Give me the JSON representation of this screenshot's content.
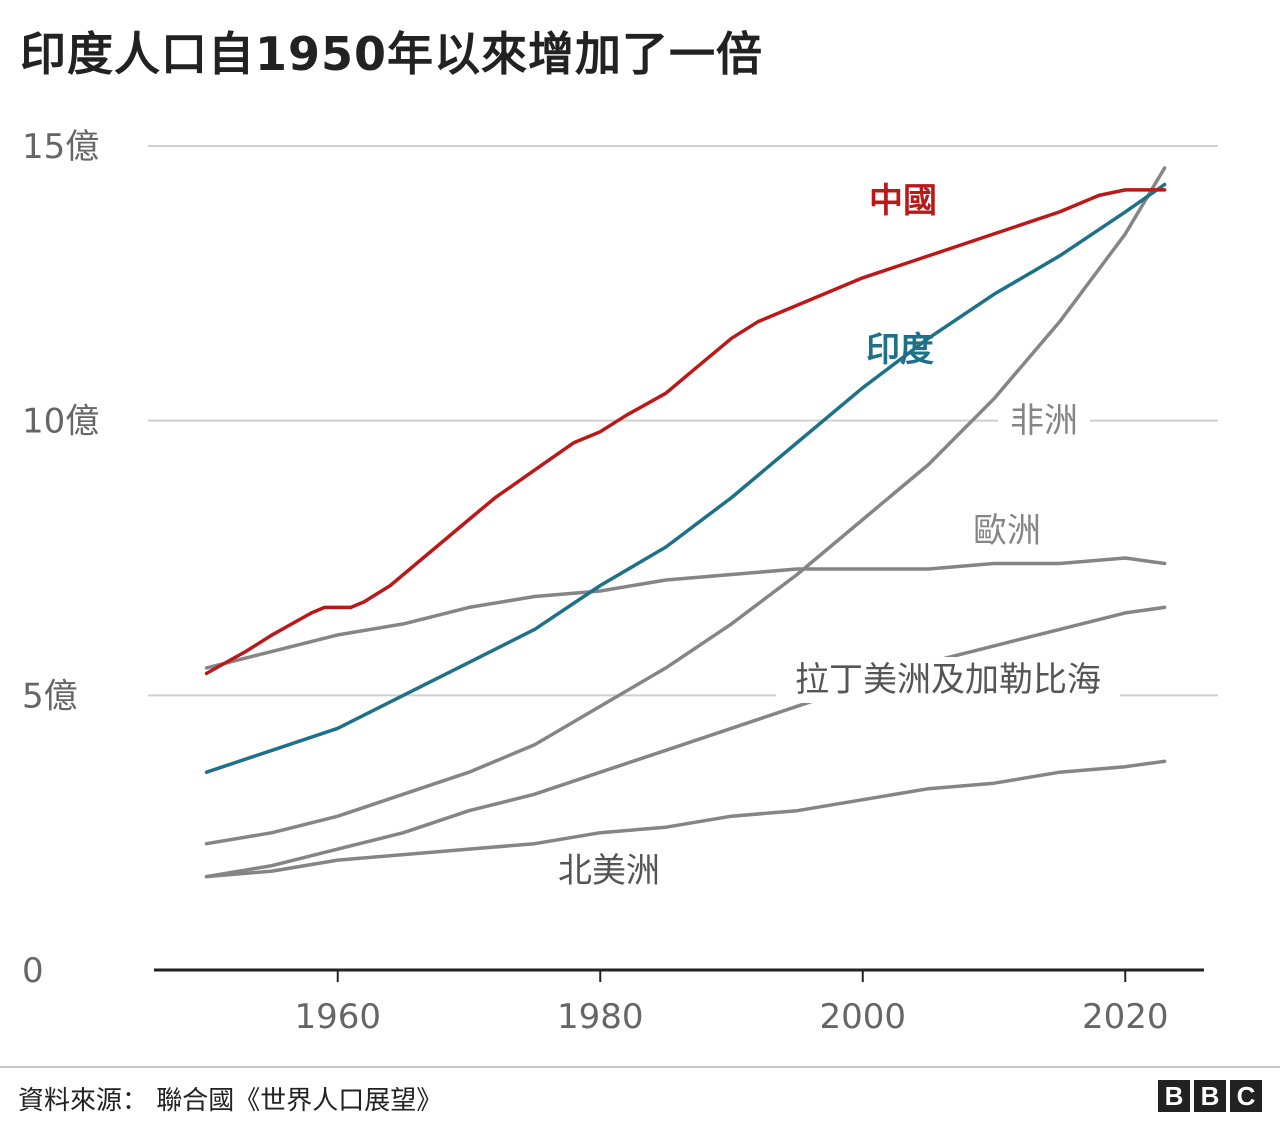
{
  "title": "印度人口自1950年以來增加了一倍",
  "source": "資料來源： 聯合國《世界人口展望》",
  "logo": [
    "B",
    "B",
    "C"
  ],
  "colors": {
    "china": "#bb1919",
    "india": "#1d7189",
    "other": "#858585",
    "grid": "#d0d0d0",
    "axis": "#222222"
  },
  "chart_data": {
    "type": "line",
    "xlim": [
      1946,
      2026
    ],
    "ylim": [
      0,
      15
    ],
    "x_ticks": [
      1960,
      1980,
      2000,
      2020
    ],
    "y_ticks": [
      {
        "value": 0,
        "label": "0"
      },
      {
        "value": 5,
        "label": "5億"
      },
      {
        "value": 10,
        "label": "10億"
      },
      {
        "value": 15,
        "label": "15億"
      }
    ],
    "grid": true,
    "series": [
      {
        "key": "china",
        "name": "中國",
        "label_color": "#bb1919",
        "points": [
          [
            1950,
            5.4
          ],
          [
            1953,
            5.8
          ],
          [
            1955,
            6.1
          ],
          [
            1958,
            6.5
          ],
          [
            1959,
            6.6
          ],
          [
            1960,
            6.6
          ],
          [
            1961,
            6.6
          ],
          [
            1962,
            6.7
          ],
          [
            1964,
            7.0
          ],
          [
            1966,
            7.4
          ],
          [
            1968,
            7.8
          ],
          [
            1970,
            8.2
          ],
          [
            1972,
            8.6
          ],
          [
            1975,
            9.1
          ],
          [
            1978,
            9.6
          ],
          [
            1980,
            9.8
          ],
          [
            1982,
            10.1
          ],
          [
            1985,
            10.5
          ],
          [
            1987,
            10.9
          ],
          [
            1990,
            11.5
          ],
          [
            1992,
            11.8
          ],
          [
            1995,
            12.1
          ],
          [
            2000,
            12.6
          ],
          [
            2005,
            13.0
          ],
          [
            2010,
            13.4
          ],
          [
            2015,
            13.8
          ],
          [
            2018,
            14.1
          ],
          [
            2020,
            14.2
          ],
          [
            2022,
            14.2
          ],
          [
            2023,
            14.2
          ]
        ]
      },
      {
        "key": "india",
        "name": "印度",
        "label_color": "#1d7189",
        "points": [
          [
            1950,
            3.6
          ],
          [
            1955,
            4.0
          ],
          [
            1960,
            4.4
          ],
          [
            1965,
            5.0
          ],
          [
            1970,
            5.6
          ],
          [
            1975,
            6.2
          ],
          [
            1980,
            7.0
          ],
          [
            1985,
            7.7
          ],
          [
            1990,
            8.6
          ],
          [
            1995,
            9.6
          ],
          [
            2000,
            10.6
          ],
          [
            2005,
            11.5
          ],
          [
            2010,
            12.3
          ],
          [
            2015,
            13.0
          ],
          [
            2020,
            13.8
          ],
          [
            2023,
            14.3
          ]
        ]
      },
      {
        "key": "africa",
        "name": "非洲",
        "label_color": "#858585",
        "points": [
          [
            1950,
            2.3
          ],
          [
            1955,
            2.5
          ],
          [
            1960,
            2.8
          ],
          [
            1965,
            3.2
          ],
          [
            1970,
            3.6
          ],
          [
            1975,
            4.1
          ],
          [
            1980,
            4.8
          ],
          [
            1985,
            5.5
          ],
          [
            1990,
            6.3
          ],
          [
            1995,
            7.2
          ],
          [
            2000,
            8.2
          ],
          [
            2005,
            9.2
          ],
          [
            2010,
            10.4
          ],
          [
            2015,
            11.8
          ],
          [
            2020,
            13.4
          ],
          [
            2023,
            14.6
          ]
        ]
      },
      {
        "key": "europe",
        "name": "歐洲",
        "label_color": "#858585",
        "points": [
          [
            1950,
            5.5
          ],
          [
            1955,
            5.8
          ],
          [
            1960,
            6.1
          ],
          [
            1965,
            6.3
          ],
          [
            1970,
            6.6
          ],
          [
            1975,
            6.8
          ],
          [
            1980,
            6.9
          ],
          [
            1985,
            7.1
          ],
          [
            1990,
            7.2
          ],
          [
            1995,
            7.3
          ],
          [
            2000,
            7.3
          ],
          [
            2005,
            7.3
          ],
          [
            2010,
            7.4
          ],
          [
            2015,
            7.4
          ],
          [
            2020,
            7.5
          ],
          [
            2023,
            7.4
          ]
        ]
      },
      {
        "key": "latin_america",
        "name": "拉丁美洲及加勒比海",
        "label_color": "#555555",
        "points": [
          [
            1950,
            1.7
          ],
          [
            1955,
            1.9
          ],
          [
            1960,
            2.2
          ],
          [
            1965,
            2.5
          ],
          [
            1970,
            2.9
          ],
          [
            1975,
            3.2
          ],
          [
            1980,
            3.6
          ],
          [
            1985,
            4.0
          ],
          [
            1990,
            4.4
          ],
          [
            1995,
            4.8
          ],
          [
            2000,
            5.2
          ],
          [
            2005,
            5.6
          ],
          [
            2010,
            5.9
          ],
          [
            2015,
            6.2
          ],
          [
            2020,
            6.5
          ],
          [
            2023,
            6.6
          ]
        ]
      },
      {
        "key": "north_america",
        "name": "北美洲",
        "label_color": "#555555",
        "points": [
          [
            1950,
            1.7
          ],
          [
            1955,
            1.8
          ],
          [
            1960,
            2.0
          ],
          [
            1965,
            2.1
          ],
          [
            1970,
            2.2
          ],
          [
            1975,
            2.3
          ],
          [
            1980,
            2.5
          ],
          [
            1985,
            2.6
          ],
          [
            1990,
            2.8
          ],
          [
            1995,
            2.9
          ],
          [
            2000,
            3.1
          ],
          [
            2005,
            3.3
          ],
          [
            2010,
            3.4
          ],
          [
            2015,
            3.6
          ],
          [
            2020,
            3.7
          ],
          [
            2023,
            3.8
          ]
        ]
      }
    ]
  }
}
